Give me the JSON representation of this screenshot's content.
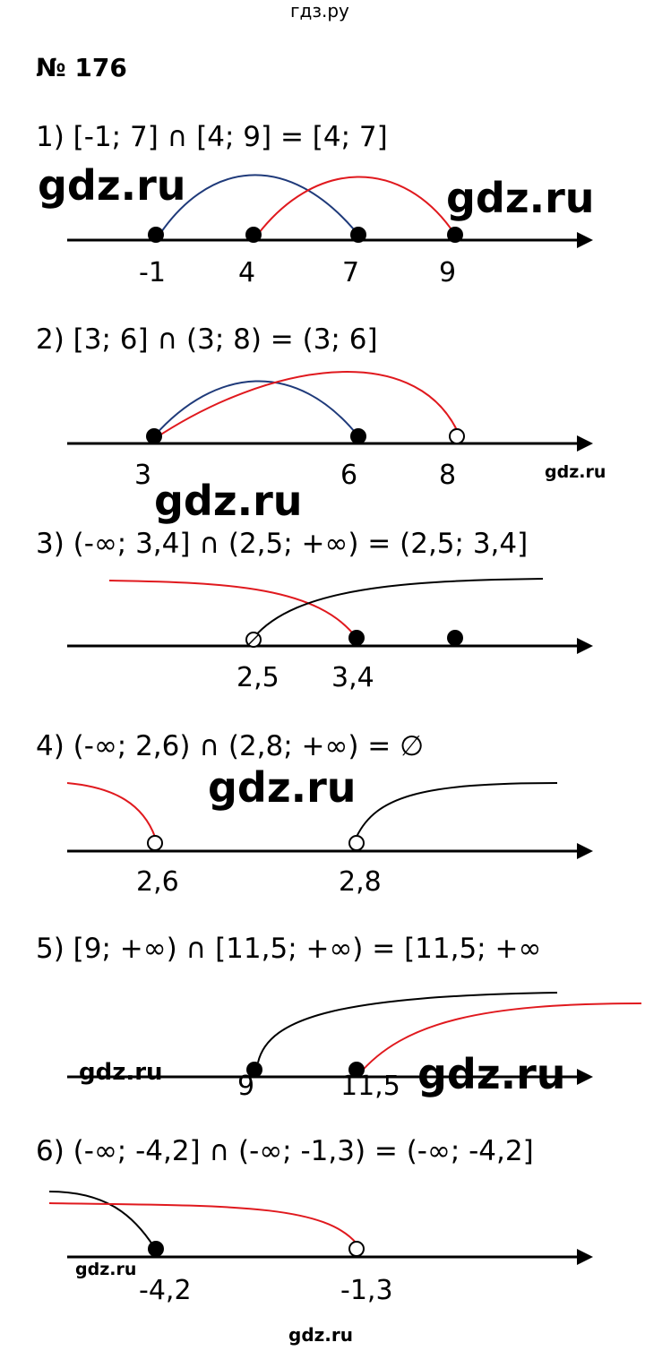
{
  "header": {
    "site": "гдз.ру",
    "problem_title": "№ 176"
  },
  "tasks": [
    {
      "statement": "1) [-1; 7] ∩ [4; 9] = [4; 7]",
      "labels": [
        "-1",
        "4",
        "7",
        "9"
      ]
    },
    {
      "statement": "2) [3; 6] ∩ (3; 8) = (3; 6]",
      "labels": [
        "3",
        "6",
        "8"
      ]
    },
    {
      "statement": "3) (-∞; 3,4] ∩ (2,5; +∞) = (2,5; 3,4]",
      "labels": [
        "2,5",
        "3,4"
      ]
    },
    {
      "statement": "4) (-∞; 2,6) ∩ (2,8; +∞) = ∅",
      "labels": [
        "2,6",
        "2,8"
      ]
    },
    {
      "statement": "5) [9; +∞) ∩ [11,5; +∞) = [11,5; +∞",
      "labels": [
        "9",
        "11,5"
      ]
    },
    {
      "statement": "6) (-∞; -4,2] ∩ (-∞; -1,3) = (-∞; -4,2]",
      "labels": [
        "-4,2",
        "-1,3"
      ]
    }
  ],
  "watermark": "gdz.ru",
  "footer": {
    "site": "gdz.ru"
  },
  "colors": {
    "red": "#e0191e",
    "blue": "#1f3a7a",
    "black": "#000000"
  }
}
